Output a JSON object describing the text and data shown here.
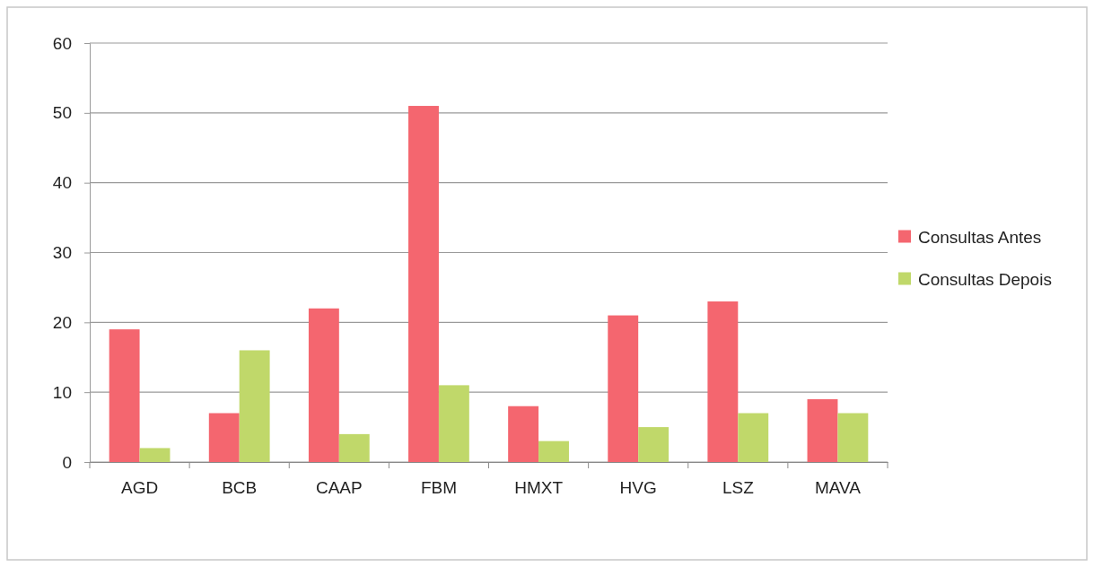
{
  "chart_data": {
    "type": "bar",
    "categories": [
      "AGD",
      "BCB",
      "CAAP",
      "FBM",
      "HMXT",
      "HVG",
      "LSZ",
      "MAVA"
    ],
    "series": [
      {
        "name": "Consultas Antes",
        "color": "#f4666f",
        "values": [
          19,
          7,
          22,
          51,
          8,
          21,
          23,
          9
        ]
      },
      {
        "name": "Consultas Depois",
        "color": "#c0d86a",
        "values": [
          2,
          16,
          4,
          11,
          3,
          5,
          7,
          7
        ]
      }
    ],
    "ylim": [
      0,
      60
    ],
    "yticks": [
      0,
      10,
      20,
      30,
      40,
      50,
      60
    ],
    "grid": "y",
    "legend": "right"
  }
}
